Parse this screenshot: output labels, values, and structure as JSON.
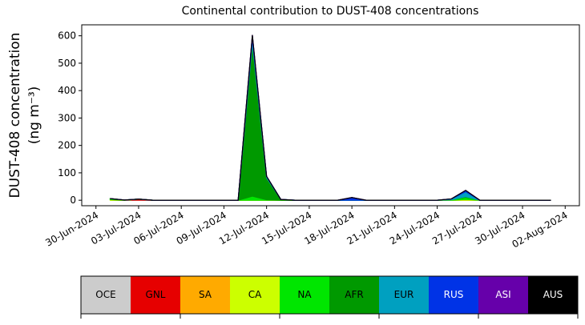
{
  "chart_data": {
    "type": "area",
    "stacked": true,
    "title": "Continental contribution to DUST-408 concentrations",
    "ylabel": "DUST-408 concentration",
    "ylabel_unit": "(ng m⁻³)",
    "x": [
      "2024-07-01",
      "2024-07-02",
      "2024-07-03",
      "2024-07-04",
      "2024-07-05",
      "2024-07-06",
      "2024-07-07",
      "2024-07-08",
      "2024-07-09",
      "2024-07-10",
      "2024-07-11",
      "2024-07-12",
      "2024-07-13",
      "2024-07-14",
      "2024-07-15",
      "2024-07-16",
      "2024-07-17",
      "2024-07-18",
      "2024-07-19",
      "2024-07-20",
      "2024-07-21",
      "2024-07-22",
      "2024-07-23",
      "2024-07-24",
      "2024-07-25",
      "2024-07-26",
      "2024-07-27",
      "2024-07-28",
      "2024-07-29",
      "2024-07-30",
      "2024-07-31",
      "2024-08-01"
    ],
    "series": [
      {
        "name": "OCE",
        "color": "#cccccc",
        "values": [
          0,
          0,
          0,
          0,
          0,
          0,
          0,
          0,
          0,
          0,
          0,
          0,
          0,
          0,
          0,
          0,
          0,
          0,
          0,
          0,
          0,
          0,
          0,
          0,
          0,
          0,
          0,
          0,
          0,
          0,
          0,
          0
        ]
      },
      {
        "name": "GNL",
        "color": "#e60000",
        "values": [
          0,
          0,
          4,
          0,
          0,
          0,
          0,
          0,
          0,
          0,
          0,
          0,
          0,
          0,
          0,
          0,
          0,
          0,
          0,
          0,
          0,
          0,
          0,
          0,
          0,
          0,
          0,
          0,
          0,
          0,
          0,
          0
        ]
      },
      {
        "name": "SA",
        "color": "#ffaa00",
        "values": [
          0,
          0,
          0,
          0,
          0,
          0,
          0,
          0,
          0,
          0,
          0,
          0,
          0,
          0,
          0,
          0,
          0,
          0,
          0,
          0,
          0,
          0,
          0,
          0,
          0,
          0,
          0,
          0,
          0,
          0,
          0,
          0
        ]
      },
      {
        "name": "CA",
        "color": "#ccff00",
        "values": [
          2,
          0,
          0,
          0,
          0,
          0,
          0,
          0,
          0,
          0,
          0,
          0,
          0,
          0,
          0,
          0,
          0,
          0,
          0,
          0,
          0,
          0,
          0,
          0,
          0,
          3,
          0,
          0,
          0,
          0,
          0,
          0
        ]
      },
      {
        "name": "NA",
        "color": "#00e600",
        "values": [
          3,
          0,
          0,
          0,
          0,
          0,
          0,
          0,
          0,
          0,
          15,
          2,
          0,
          0,
          0,
          0,
          0,
          0,
          0,
          0,
          0,
          0,
          0,
          0,
          2,
          8,
          0,
          0,
          0,
          0,
          0,
          0
        ]
      },
      {
        "name": "AFR",
        "color": "#009900",
        "values": [
          1,
          1,
          0,
          0,
          0,
          0,
          0,
          0,
          0,
          0,
          560,
          80,
          3,
          0,
          0,
          0,
          0,
          0,
          0,
          0,
          0,
          0,
          0,
          0,
          0,
          2,
          0,
          0,
          0,
          0,
          0,
          0
        ]
      },
      {
        "name": "EUR",
        "color": "#00a0c0",
        "values": [
          0,
          0,
          0,
          0,
          0,
          0,
          0,
          0,
          0,
          0,
          15,
          5,
          0,
          0,
          0,
          0,
          0,
          0,
          0,
          0,
          0,
          0,
          0,
          0,
          3,
          18,
          0,
          0,
          0,
          0,
          0,
          0
        ]
      },
      {
        "name": "RUS",
        "color": "#0033e6",
        "values": [
          0,
          0,
          0,
          0,
          0,
          0,
          0,
          0,
          0,
          0,
          10,
          0,
          0,
          0,
          0,
          0,
          0,
          10,
          0,
          0,
          0,
          0,
          0,
          0,
          0,
          5,
          0,
          0,
          0,
          0,
          0,
          0
        ]
      },
      {
        "name": "ASI",
        "color": "#6600aa",
        "values": [
          0,
          0,
          0,
          0,
          0,
          0,
          0,
          0,
          0,
          0,
          3,
          0,
          0,
          0,
          0,
          0,
          0,
          0,
          0,
          0,
          0,
          0,
          0,
          0,
          0,
          0,
          0,
          0,
          0,
          0,
          0,
          0
        ]
      },
      {
        "name": "AUS",
        "color": "#000000",
        "values": [
          0,
          0,
          0,
          0,
          0,
          0,
          0,
          0,
          0,
          0,
          0,
          0,
          0,
          0,
          0,
          0,
          0,
          0,
          0,
          0,
          0,
          0,
          0,
          0,
          0,
          0,
          0,
          0,
          0,
          0,
          0,
          0
        ]
      }
    ],
    "xlim": [
      "2024-06-29",
      "2024-08-03"
    ],
    "xticks": [
      {
        "value": "2024-06-30",
        "label": "30-Jun-2024"
      },
      {
        "value": "2024-07-03",
        "label": "03-Jul-2024"
      },
      {
        "value": "2024-07-06",
        "label": "06-Jul-2024"
      },
      {
        "value": "2024-07-09",
        "label": "09-Jul-2024"
      },
      {
        "value": "2024-07-12",
        "label": "12-Jul-2024"
      },
      {
        "value": "2024-07-15",
        "label": "15-Jul-2024"
      },
      {
        "value": "2024-07-18",
        "label": "18-Jul-2024"
      },
      {
        "value": "2024-07-21",
        "label": "21-Jul-2024"
      },
      {
        "value": "2024-07-24",
        "label": "24-Jul-2024"
      },
      {
        "value": "2024-07-27",
        "label": "27-Jul-2024"
      },
      {
        "value": "2024-07-30",
        "label": "30-Jul-2024"
      },
      {
        "value": "2024-08-02",
        "label": "02-Aug-2024"
      }
    ],
    "ylim": [
      -20,
      640
    ],
    "yticks": [
      0,
      100,
      200,
      300,
      400,
      500,
      600
    ]
  }
}
